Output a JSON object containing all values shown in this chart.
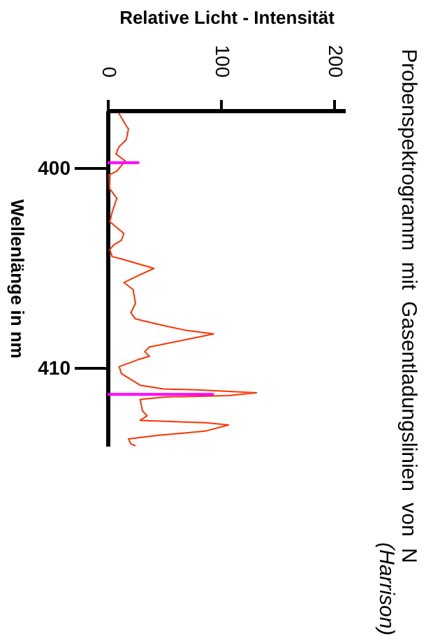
{
  "chart_data": {
    "type": "line",
    "title": "Probenspektrogramm mit Gasentladungslinien von N",
    "subtitle": "(Harrison)",
    "xlabel": "Relative Licht - Intensität",
    "ylabel": "Wellenlänge in nm",
    "xlim": [
      0,
      210
    ],
    "xticks": [
      0,
      100,
      200
    ],
    "ylim": [
      413.9,
      397.1
    ],
    "yticks": [
      400,
      410
    ],
    "grid": false,
    "series": [
      {
        "color": "#ff3300",
        "x": [
          10,
          16.5,
          18.5,
          16.5,
          10,
          7.4,
          15.6,
          8.2,
          1.2,
          2,
          8.2,
          4,
          2,
          14.4,
          12.3,
          5.3,
          2,
          4,
          12.3,
          41,
          27,
          14.4,
          22.6,
          24.7,
          20.6,
          24.7,
          45.3,
          70,
          93.8,
          70,
          37,
          32.9,
          37,
          27,
          10.3,
          12.3,
          28.8,
          49.4,
          82.3,
          131.7,
          107,
          51.4,
          28.8,
          30.9,
          35,
          28.8,
          86.4,
          107,
          86.4,
          45.3,
          18.5,
          20.6,
          24.7
        ],
        "values": [
          397.24,
          397.87,
          398.03,
          398.57,
          398.93,
          399.28,
          399.63,
          400.14,
          400.33,
          401.03,
          401.5,
          402.2,
          402.67,
          403.26,
          403.6,
          403.84,
          404.07,
          404.42,
          404.54,
          405.01,
          405.37,
          405.72,
          406.07,
          406.77,
          407.23,
          407.54,
          407.82,
          408.12,
          408.29,
          408.57,
          408.95,
          409.18,
          409.41,
          409.58,
          409.93,
          410.28,
          410.86,
          411.05,
          411.1,
          411.24,
          411.38,
          411.45,
          411.57,
          412.15,
          412.39,
          412.62,
          412.74,
          412.85,
          413.16,
          413.37,
          413.55,
          413.79,
          413.9
        ]
      },
      {
        "color": "#ff00ff",
        "x": [
          0,
          28
        ],
        "values": [
          399.72,
          399.72
        ]
      },
      {
        "color": "#ff00ff",
        "x": [
          0,
          94
        ],
        "values": [
          411.32,
          411.32
        ]
      }
    ]
  }
}
